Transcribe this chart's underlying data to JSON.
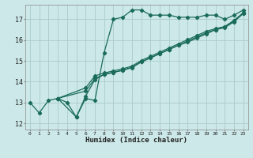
{
  "bg_color": "#cce8e8",
  "grid_color": "#aacccc",
  "line_color": "#1a6b5a",
  "xlabel": "Humidex (Indice chaleur)",
  "ylabel_ticks": [
    12,
    13,
    14,
    15,
    16,
    17
  ],
  "xlim": [
    -0.5,
    23.5
  ],
  "ylim": [
    11.7,
    17.7
  ],
  "xtick_labels": [
    "0",
    "1",
    "2",
    "3",
    "4",
    "5",
    "6",
    "7",
    "8",
    "9",
    "10",
    "11",
    "12",
    "13",
    "14",
    "15",
    "16",
    "17",
    "18",
    "19",
    "20",
    "21",
    "22",
    "23"
  ],
  "series1_x": [
    0,
    1,
    2,
    3,
    4,
    5,
    6,
    7,
    8,
    9,
    10,
    11,
    12,
    13,
    14,
    15,
    16,
    17,
    18,
    19,
    20,
    21,
    22,
    23
  ],
  "series1_y": [
    13.0,
    12.5,
    13.1,
    13.2,
    13.0,
    12.3,
    13.2,
    13.1,
    15.4,
    17.0,
    17.1,
    17.45,
    17.45,
    17.2,
    17.2,
    17.2,
    17.1,
    17.1,
    17.1,
    17.2,
    17.2,
    17.0,
    17.2,
    17.45
  ],
  "series2_x": [
    3,
    5,
    6,
    7,
    8,
    9,
    10,
    11,
    12,
    13,
    14,
    15,
    16,
    17,
    18,
    19,
    20,
    21,
    22,
    23
  ],
  "series2_y": [
    13.2,
    12.3,
    13.3,
    14.1,
    14.35,
    14.45,
    14.55,
    14.7,
    14.95,
    15.15,
    15.35,
    15.55,
    15.75,
    15.9,
    16.1,
    16.3,
    16.5,
    16.65,
    16.95,
    17.3
  ],
  "series3_x": [
    3,
    6,
    7,
    8,
    9,
    10,
    11,
    12,
    13,
    14,
    15,
    16,
    17,
    18,
    19,
    20,
    21,
    22,
    23
  ],
  "series3_y": [
    13.2,
    13.55,
    14.15,
    14.35,
    14.45,
    14.55,
    14.68,
    14.95,
    15.15,
    15.35,
    15.55,
    15.75,
    15.95,
    16.15,
    16.35,
    16.5,
    16.6,
    16.88,
    17.28
  ],
  "series4_x": [
    3,
    6,
    7,
    8,
    9,
    10,
    11,
    12,
    13,
    14,
    15,
    16,
    17,
    18,
    19,
    20,
    21,
    22,
    23
  ],
  "series4_y": [
    13.2,
    13.7,
    14.28,
    14.42,
    14.52,
    14.62,
    14.75,
    15.02,
    15.22,
    15.42,
    15.62,
    15.82,
    16.02,
    16.22,
    16.42,
    16.55,
    16.65,
    16.92,
    17.32
  ]
}
